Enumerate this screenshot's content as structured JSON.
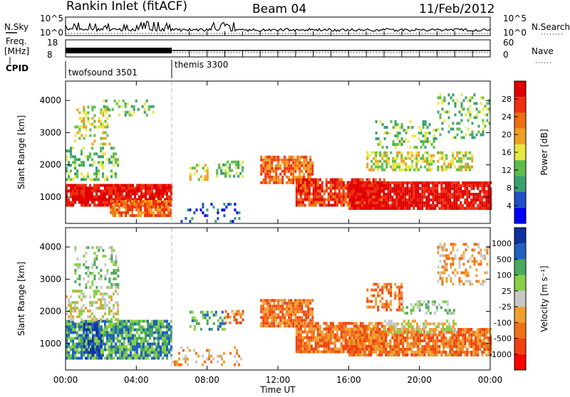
{
  "header": {
    "station": "Rankin Inlet (fitACF)",
    "beam": "Beam 04",
    "date": "11/Feb/2012"
  },
  "top_strip": {
    "left_labels": {
      "nsky": "N.Sky",
      "freq": "Freq.",
      "freq_unit": "[MHz]",
      "cpid": "CPID"
    },
    "right_labels": {
      "nsearch": "N.Search",
      "nave": "Nave"
    },
    "nsky_ticks": [
      "10^5",
      "10^0"
    ],
    "freq_ticks": [
      "18",
      "8"
    ],
    "nave_ticks": [
      "60",
      "0"
    ],
    "cpid_segments": [
      {
        "name": "twofsound 3501",
        "start_hour": 0,
        "end_hour": 6
      },
      {
        "name": "themis 3300",
        "start_hour": 6,
        "end_hour": 24
      }
    ]
  },
  "chart_data": [
    {
      "type": "heatmap",
      "id": "power-panel",
      "xlabel": "Time UT",
      "ylabel": "Slant Range [km]",
      "x_ticks": [
        "00:00",
        "04:00",
        "08:00",
        "12:00",
        "16:00",
        "20:00",
        "00:00"
      ],
      "xlim_hours": [
        0,
        24
      ],
      "y_ticks": [
        1000,
        2000,
        3000,
        4000
      ],
      "ylim": [
        180,
        4600
      ],
      "colorbar": {
        "label": "Power [dB]",
        "ticks": [
          "28",
          "24",
          "20",
          "16",
          "12",
          "8",
          "4"
        ],
        "colors": [
          "#0000ff",
          "#2050c8",
          "#3aa070",
          "#5dbd4a",
          "#e8e840",
          "#f0a020",
          "#f07010",
          "#f03010",
          "#e00000"
        ]
      },
      "bands": [
        {
          "t": [
            0,
            6
          ],
          "r": [
            700,
            1400
          ],
          "level": 8,
          "density": 0.9
        },
        {
          "t": [
            2.5,
            6
          ],
          "r": [
            380,
            900
          ],
          "level": 6,
          "density": 0.85
        },
        {
          "t": [
            0,
            3
          ],
          "r": [
            1500,
            2500
          ],
          "level": 3,
          "density": 0.35
        },
        {
          "t": [
            0.5,
            2.5
          ],
          "r": [
            2600,
            3800
          ],
          "level": 4,
          "density": 0.3
        },
        {
          "t": [
            2,
            5
          ],
          "r": [
            3500,
            4000
          ],
          "level": 3,
          "density": 0.3
        },
        {
          "t": [
            6.5,
            10
          ],
          "r": [
            200,
            800
          ],
          "level": 1,
          "density": 0.2
        },
        {
          "t": [
            7,
            8
          ],
          "r": [
            1500,
            2000
          ],
          "level": 4,
          "density": 0.45
        },
        {
          "t": [
            8.5,
            10
          ],
          "r": [
            1600,
            2100
          ],
          "level": 3,
          "density": 0.45
        },
        {
          "t": [
            11,
            14
          ],
          "r": [
            1400,
            2200
          ],
          "level": 6,
          "density": 0.8
        },
        {
          "t": [
            13,
            18
          ],
          "r": [
            700,
            1500
          ],
          "level": 7,
          "density": 0.85
        },
        {
          "t": [
            16,
            24
          ],
          "r": [
            600,
            1400
          ],
          "level": 8,
          "density": 0.9
        },
        {
          "t": [
            17,
            23
          ],
          "r": [
            1800,
            2400
          ],
          "level": 4,
          "density": 0.55
        },
        {
          "t": [
            17.5,
            21
          ],
          "r": [
            2500,
            3300
          ],
          "level": 3,
          "density": 0.3
        },
        {
          "t": [
            21,
            24
          ],
          "r": [
            2800,
            4200
          ],
          "level": 3,
          "density": 0.3
        }
      ]
    },
    {
      "type": "heatmap",
      "id": "velocity-panel",
      "xlabel": "Time UT",
      "ylabel": "Slant Range [km]",
      "x_ticks": [
        "00:00",
        "04:00",
        "08:00",
        "12:00",
        "16:00",
        "20:00",
        "00:00"
      ],
      "xlim_hours": [
        0,
        24
      ],
      "y_ticks": [
        1000,
        2000,
        3000,
        4000
      ],
      "ylim": [
        180,
        4600
      ],
      "colorbar": {
        "label": "Velocity [m s⁻¹]",
        "ticks": [
          "1000",
          "500",
          "100",
          "25",
          "-25",
          "-100",
          "-500",
          "-1000"
        ],
        "colors": [
          "#ff0000",
          "#f04010",
          "#f07018",
          "#f0a030",
          "#c8c8c8",
          "#88d048",
          "#4aa860",
          "#2060c0",
          "#1030a0"
        ]
      },
      "bands": [
        {
          "t": [
            0,
            6
          ],
          "r": [
            500,
            1700
          ],
          "level": 6,
          "density": 0.85
        },
        {
          "t": [
            1,
            2
          ],
          "r": [
            500,
            1600
          ],
          "level": 8,
          "density": 0.6
        },
        {
          "t": [
            0,
            3
          ],
          "r": [
            1700,
            2600
          ],
          "level": 4,
          "density": 0.45
        },
        {
          "t": [
            0.5,
            3
          ],
          "r": [
            2700,
            4000
          ],
          "level": 5,
          "density": 0.3
        },
        {
          "t": [
            6,
            10
          ],
          "r": [
            300,
            900
          ],
          "level": 3,
          "density": 0.2
        },
        {
          "t": [
            7,
            9
          ],
          "r": [
            1400,
            2000
          ],
          "level": 6,
          "density": 0.45
        },
        {
          "t": [
            9,
            10
          ],
          "r": [
            1600,
            2000
          ],
          "level": 2,
          "density": 0.45
        },
        {
          "t": [
            11,
            14
          ],
          "r": [
            1500,
            2300
          ],
          "level": 2,
          "density": 0.85
        },
        {
          "t": [
            13,
            18
          ],
          "r": [
            700,
            1600
          ],
          "level": 2,
          "density": 0.85
        },
        {
          "t": [
            16,
            24
          ],
          "r": [
            600,
            1400
          ],
          "level": 2,
          "density": 0.85
        },
        {
          "t": [
            18,
            22
          ],
          "r": [
            1300,
            1700
          ],
          "level": 4,
          "density": 0.6
        },
        {
          "t": [
            17,
            19
          ],
          "r": [
            2000,
            2800
          ],
          "level": 2,
          "density": 0.45
        },
        {
          "t": [
            19,
            22
          ],
          "r": [
            1900,
            2300
          ],
          "level": 5,
          "density": 0.45
        },
        {
          "t": [
            21,
            24
          ],
          "r": [
            2800,
            4100
          ],
          "level": 3,
          "density": 0.35
        }
      ]
    }
  ]
}
